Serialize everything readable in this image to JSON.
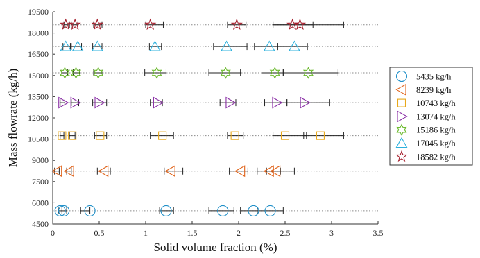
{
  "chart_data": {
    "type": "scatter",
    "title": "",
    "xlabel": "Solid volume fraction (%)",
    "ylabel": "Mass flowrate (kg/h)",
    "xlim": [
      0,
      3.5
    ],
    "ylim": [
      4500,
      19500
    ],
    "xticks": [
      "0",
      "0.5",
      "1",
      "1.5",
      "2",
      "2.5",
      "3",
      "3.5"
    ],
    "yticks": [
      "4500",
      "6000",
      "7500",
      "9000",
      "10500",
      "12000",
      "13500",
      "15000",
      "16500",
      "18000",
      "19500"
    ],
    "grid": "horizontal dotted lines at each series level",
    "legend_position": "right",
    "series": [
      {
        "name": "5435 kg/h",
        "y": 5435,
        "marker": "circle",
        "color": "#1f8fc8",
        "points": [
          {
            "x": 0.08,
            "xmin": 0.06,
            "xmax": 0.1
          },
          {
            "x": 0.12,
            "xmin": 0.1,
            "xmax": 0.15
          },
          {
            "x": 0.4,
            "xmin": 0.3,
            "xmax": 0.4
          },
          {
            "x": 1.22,
            "xmin": 1.15,
            "xmax": 1.3
          },
          {
            "x": 1.83,
            "xmin": 1.68,
            "xmax": 1.95
          },
          {
            "x": 2.16,
            "xmin": 2.02,
            "xmax": 2.2
          },
          {
            "x": 2.34,
            "xmin": 2.2,
            "xmax": 2.48
          }
        ]
      },
      {
        "name": "8239 kg/h",
        "y": 8239,
        "marker": "triangle-left",
        "color": "#e0631a",
        "points": [
          {
            "x": 0.05,
            "xmin": 0.02,
            "xmax": 0.07
          },
          {
            "x": 0.18,
            "xmin": 0.15,
            "xmax": 0.2
          },
          {
            "x": 0.55,
            "xmin": 0.48,
            "xmax": 0.62
          },
          {
            "x": 1.27,
            "xmin": 1.2,
            "xmax": 1.4
          },
          {
            "x": 2.02,
            "xmin": 1.9,
            "xmax": 2.1
          },
          {
            "x": 2.33,
            "xmin": 2.2,
            "xmax": 2.45
          },
          {
            "x": 2.4,
            "xmin": 2.3,
            "xmax": 2.6
          }
        ]
      },
      {
        "name": "10743 kg/h",
        "y": 10743,
        "marker": "square",
        "color": "#e8a81a",
        "points": [
          {
            "x": 0.1,
            "xmin": 0.08,
            "xmax": 0.12
          },
          {
            "x": 0.21,
            "xmin": 0.18,
            "xmax": 0.24
          },
          {
            "x": 0.51,
            "xmin": 0.45,
            "xmax": 0.58
          },
          {
            "x": 1.18,
            "xmin": 1.05,
            "xmax": 1.3
          },
          {
            "x": 1.96,
            "xmin": 1.88,
            "xmax": 2.05
          },
          {
            "x": 2.5,
            "xmin": 2.37,
            "xmax": 2.73
          },
          {
            "x": 2.88,
            "xmin": 2.7,
            "xmax": 3.13
          }
        ]
      },
      {
        "name": "13074 kg/h",
        "y": 13074,
        "marker": "triangle-right",
        "color": "#8a2fa6",
        "points": [
          {
            "x": 0.11,
            "xmin": 0.08,
            "xmax": 0.13
          },
          {
            "x": 0.24,
            "xmin": 0.2,
            "xmax": 0.28
          },
          {
            "x": 0.5,
            "xmin": 0.43,
            "xmax": 0.58
          },
          {
            "x": 1.13,
            "xmin": 1.05,
            "xmax": 1.18
          },
          {
            "x": 1.91,
            "xmin": 1.8,
            "xmax": 1.97
          },
          {
            "x": 2.41,
            "xmin": 2.28,
            "xmax": 2.52
          },
          {
            "x": 2.71,
            "xmin": 2.52,
            "xmax": 2.98
          }
        ]
      },
      {
        "name": "15186 kg/h",
        "y": 15186,
        "marker": "hexagram",
        "color": "#6dbb2f",
        "points": [
          {
            "x": 0.13,
            "xmin": 0.1,
            "xmax": 0.16
          },
          {
            "x": 0.25,
            "xmin": 0.22,
            "xmax": 0.29
          },
          {
            "x": 0.49,
            "xmin": 0.44,
            "xmax": 0.54
          },
          {
            "x": 1.12,
            "xmin": 0.99,
            "xmax": 1.22
          },
          {
            "x": 1.86,
            "xmin": 1.68,
            "xmax": 2.02
          },
          {
            "x": 2.39,
            "xmin": 2.25,
            "xmax": 2.48
          },
          {
            "x": 2.75,
            "xmin": 2.48,
            "xmax": 3.07
          }
        ]
      },
      {
        "name": "17045 kg/h",
        "y": 17045,
        "marker": "triangle-up",
        "color": "#2bb0dd",
        "points": [
          {
            "x": 0.14,
            "xmin": 0.11,
            "xmax": 0.19
          },
          {
            "x": 0.27,
            "xmin": 0.2,
            "xmax": 0.31
          },
          {
            "x": 0.48,
            "xmin": 0.43,
            "xmax": 0.53
          },
          {
            "x": 1.1,
            "xmin": 1.04,
            "xmax": 1.17
          },
          {
            "x": 1.87,
            "xmin": 1.73,
            "xmax": 2.09
          },
          {
            "x": 2.33,
            "xmin": 2.17,
            "xmax": 2.42
          },
          {
            "x": 2.6,
            "xmin": 2.42,
            "xmax": 2.74
          }
        ]
      },
      {
        "name": "18582 kg/h",
        "y": 18582,
        "marker": "pentagram",
        "color": "#a51f2d",
        "points": [
          {
            "x": 0.14,
            "xmin": 0.12,
            "xmax": 0.18
          },
          {
            "x": 0.24,
            "xmin": 0.2,
            "xmax": 0.27
          },
          {
            "x": 0.48,
            "xmin": 0.44,
            "xmax": 0.53
          },
          {
            "x": 1.05,
            "xmin": 1.0,
            "xmax": 1.19
          },
          {
            "x": 1.98,
            "xmin": 1.88,
            "xmax": 2.08
          },
          {
            "x": 2.58,
            "xmin": 2.37,
            "xmax": 2.8
          },
          {
            "x": 2.66,
            "xmin": 2.37,
            "xmax": 3.13
          }
        ]
      }
    ]
  }
}
